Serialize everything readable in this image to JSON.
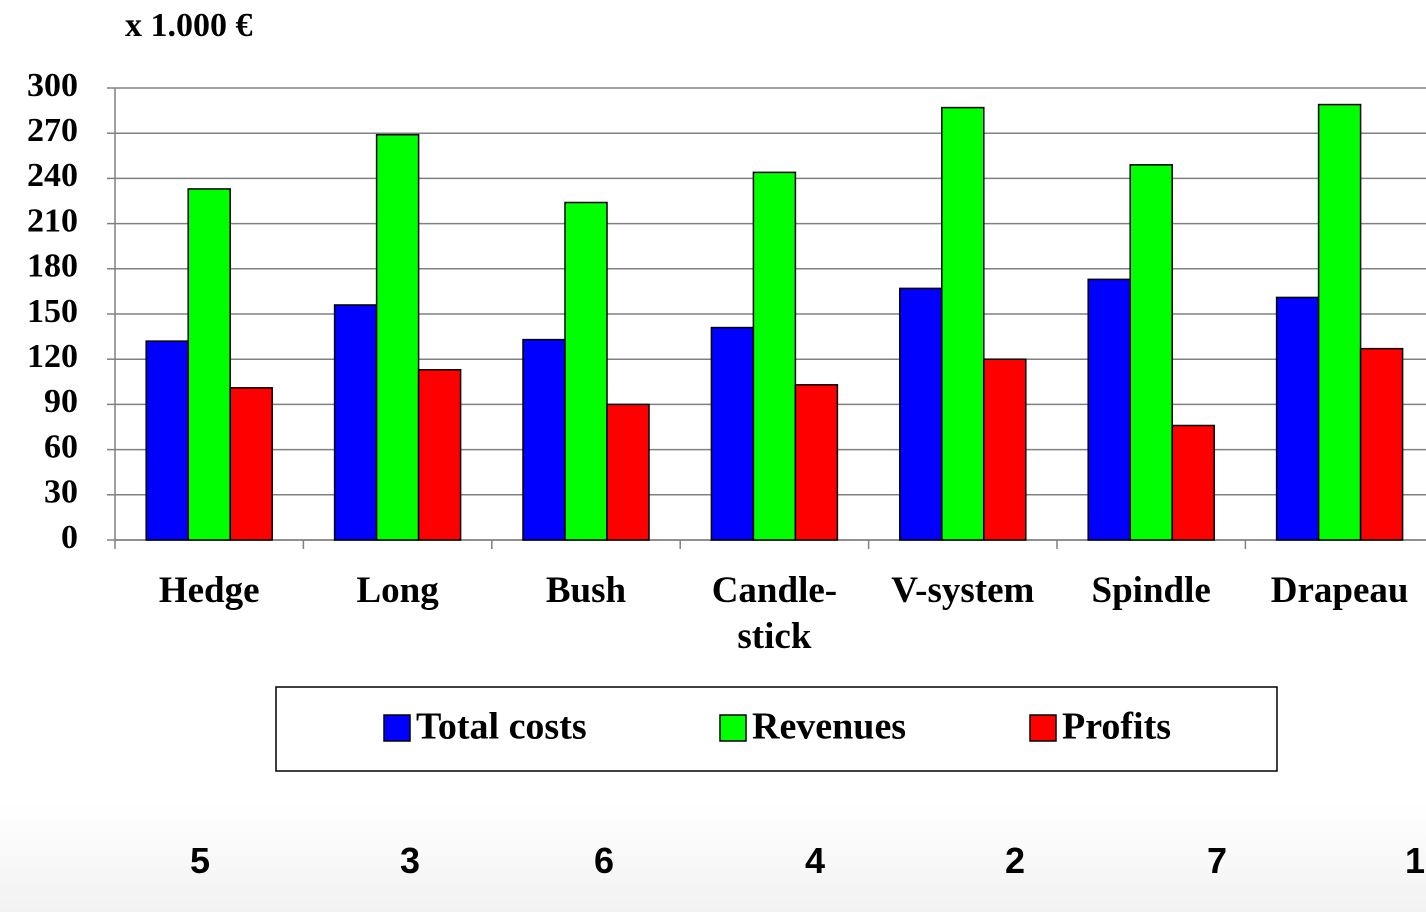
{
  "chart_data": {
    "type": "bar",
    "y_axis_label": "x 1.000 €",
    "categories": [
      "Hedge",
      "Long",
      "Bush",
      "Candle-\nstick",
      "V-system",
      "Spindle",
      "Drapeau"
    ],
    "series": [
      {
        "name": "Total costs",
        "color": "#0000ff",
        "values": [
          132,
          156,
          133,
          141,
          167,
          173,
          161
        ]
      },
      {
        "name": "Revenues",
        "color": "#00ff00",
        "values": [
          233,
          269,
          224,
          244,
          287,
          249,
          289
        ]
      },
      {
        "name": "Profits",
        "color": "#ff0000",
        "values": [
          101,
          113,
          90,
          103,
          120,
          76,
          127
        ]
      }
    ],
    "ranks": [
      "5",
      "3",
      "6",
      "4",
      "2",
      "7",
      "1"
    ],
    "ylim": [
      0,
      300
    ],
    "yticks": [
      0,
      30,
      60,
      90,
      120,
      150,
      180,
      210,
      240,
      270,
      300
    ],
    "grid": true
  }
}
